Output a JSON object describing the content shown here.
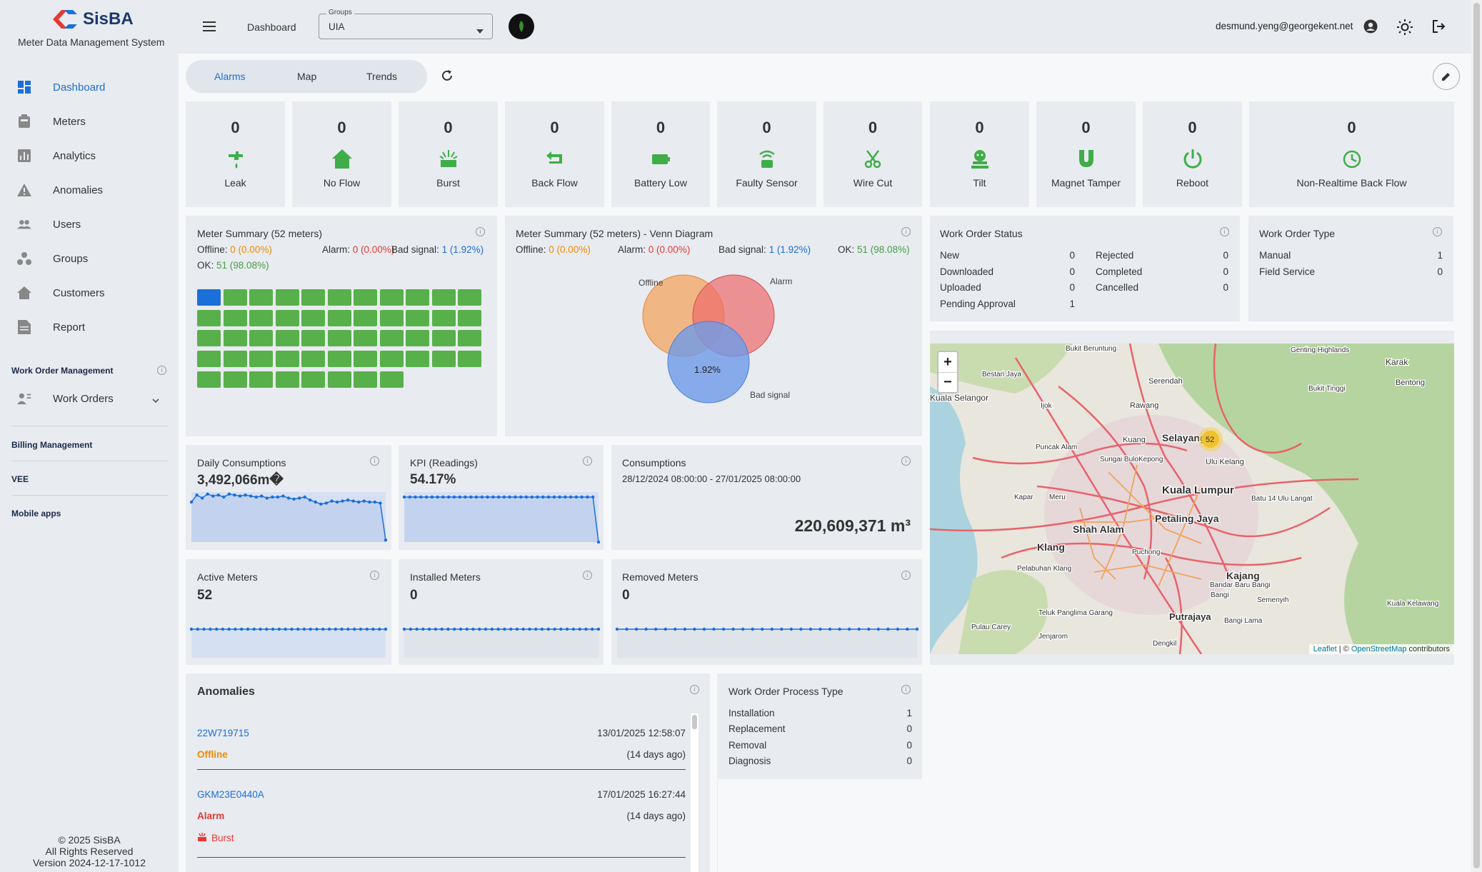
{
  "app": {
    "name": "SisBA",
    "subtitle": "Meter Data Management System"
  },
  "nav": [
    {
      "label": "Dashboard",
      "icon": "dashboard-icon"
    },
    {
      "label": "Meters",
      "icon": "meter-icon"
    },
    {
      "label": "Analytics",
      "icon": "analytics-icon"
    },
    {
      "label": "Anomalies",
      "icon": "warning-icon"
    },
    {
      "label": "Users",
      "icon": "users-icon"
    },
    {
      "label": "Groups",
      "icon": "groups-icon"
    },
    {
      "label": "Customers",
      "icon": "home-icon"
    },
    {
      "label": "Report",
      "icon": "report-icon"
    }
  ],
  "sections": {
    "work_order_mgmt": "Work Order Management",
    "work_orders": "Work Orders",
    "billing": "Billing Management",
    "vee": "VEE",
    "mobile": "Mobile apps"
  },
  "footer": {
    "copy": "© 2025 SisBA",
    "rights": "All Rights Reserved",
    "version": "Version 2024-12-17-1012"
  },
  "topbar": {
    "breadcrumb": "Dashboard",
    "groups_label": "Groups",
    "groups_value": "UIA",
    "user": "desmund.yeng@georgekent.net"
  },
  "tabs": [
    "Alarms",
    "Map",
    "Trends"
  ],
  "alarms": [
    {
      "label": "Leak",
      "count": "0"
    },
    {
      "label": "No Flow",
      "count": "0"
    },
    {
      "label": "Burst",
      "count": "0"
    },
    {
      "label": "Back Flow",
      "count": "0"
    },
    {
      "label": "Battery Low",
      "count": "0"
    },
    {
      "label": "Faulty Sensor",
      "count": "0"
    },
    {
      "label": "Wire Cut",
      "count": "0"
    },
    {
      "label": "Tilt",
      "count": "0"
    },
    {
      "label": "Magnet Tamper",
      "count": "0"
    },
    {
      "label": "Reboot",
      "count": "0"
    },
    {
      "label": "Non-Realtime Back Flow",
      "count": "0"
    }
  ],
  "summary": {
    "title": "Meter Summary (52 meters)",
    "offline_label": "Offline:",
    "offline": "0 (0.00%)",
    "alarm_label": "Alarm:",
    "alarm": "0 (0.00%)",
    "bad_label": "Bad signal:",
    "bad": "1 (1.92%)",
    "ok_label": "OK:",
    "ok": "51 (98.08%)"
  },
  "venn": {
    "title": "Meter Summary (52 meters) - Venn Diagram",
    "offline_label": "Offline:",
    "offline": "0 (0.00%)",
    "alarm_label": "Alarm:",
    "alarm": "0 (0.00%)",
    "bad_label": "Bad signal:",
    "bad": "1 (1.92%)",
    "ok_label": "OK:",
    "ok": "51 (98.08%)",
    "c_offline": "Offline",
    "c_alarm": "Alarm",
    "c_bad": "Bad signal",
    "pct": "1.92%"
  },
  "wo_status": {
    "title": "Work Order Status",
    "left": [
      [
        "New",
        "0"
      ],
      [
        "Downloaded",
        "0"
      ],
      [
        "Uploaded",
        "0"
      ],
      [
        "Pending Approval",
        "1"
      ]
    ],
    "right": [
      [
        "Rejected",
        "0"
      ],
      [
        "Completed",
        "0"
      ],
      [
        "Cancelled",
        "0"
      ]
    ]
  },
  "wo_type": {
    "title": "Work Order Type",
    "rows": [
      [
        "Manual",
        "1"
      ],
      [
        "Field Service",
        "0"
      ]
    ]
  },
  "daily": {
    "title": "Daily Consumptions",
    "value": "3,492,066m�"
  },
  "kpi": {
    "title": "KPI (Readings)",
    "value": "54.17%"
  },
  "consumptions": {
    "title": "Consumptions",
    "range": "28/12/2024 08:00:00 - 27/01/2025 08:00:00",
    "value": "220,609,371 m³"
  },
  "active": {
    "title": "Active Meters",
    "value": "52"
  },
  "installed": {
    "title": "Installed Meters",
    "value": "0"
  },
  "removed": {
    "title": "Removed Meters",
    "value": "0"
  },
  "anomalies": {
    "title": "Anomalies",
    "items": [
      {
        "id": "22W719715",
        "time": "13/01/2025 12:58:07",
        "status": "Offline",
        "ago": "(14 days ago)",
        "tag": ""
      },
      {
        "id": "GKM23E0440A",
        "time": "17/01/2025 16:27:44",
        "status": "Alarm",
        "ago": "(14 days ago)",
        "tag": "Burst"
      }
    ]
  },
  "wo_process": {
    "title": "Work Order Process Type",
    "rows": [
      [
        "Installation",
        "1"
      ],
      [
        "Replacement",
        "0"
      ],
      [
        "Removal",
        "0"
      ],
      [
        "Diagnosis",
        "0"
      ]
    ]
  },
  "map": {
    "cluster": "52",
    "attribution_leaflet": "Leaflet",
    "attribution_sep": " | © ",
    "attribution_osm": "OpenStreetMap",
    "attribution_tail": " contributors",
    "zoom_in": "+",
    "zoom_out": "−",
    "places": [
      "Kuala Lumpur",
      "Petaling Jaya",
      "Shah Alam",
      "Klang",
      "Selayang",
      "Kajang",
      "Putrajaya",
      "Rawang",
      "Karak",
      "Bentong",
      "Serendah",
      "Kuang",
      "Sungai Buloh",
      "Kepong",
      "Ulu Kelang",
      "Batu 14 Ulu Langat",
      "Semenyih",
      "Puchong",
      "Bangi",
      "Bandar Baru Bangi",
      "Bangi Lama",
      "Teluk Panglima Garang",
      "Jenjarom",
      "Dengkil",
      "Pulau Carey",
      "Kapar",
      "Meru",
      "Puncak Alam",
      "Ijok",
      "Bestari Jaya",
      "Kuala Selangor",
      "Bukit Beruntung",
      "Genting Highlands",
      "Bukit Tinggi",
      "Kuala Kelawang",
      "Pelabuhan Klang"
    ],
    "daily_series": [
      40,
      47,
      44,
      48,
      46,
      47,
      45,
      48,
      47,
      46,
      47,
      46,
      45,
      46,
      44,
      45,
      45,
      46,
      44,
      43,
      44,
      45,
      42,
      40,
      38,
      39,
      41,
      40,
      41,
      42,
      41,
      40,
      41,
      40,
      40,
      39,
      2
    ],
    "kpi_series": [
      54,
      54,
      54,
      54,
      54,
      54,
      54,
      54,
      54,
      54,
      54,
      54,
      54,
      54,
      54,
      54,
      54,
      54,
      54,
      54,
      54,
      54,
      54,
      54,
      54,
      54,
      54,
      54,
      54,
      54,
      54,
      54,
      54,
      54,
      54,
      0
    ]
  }
}
